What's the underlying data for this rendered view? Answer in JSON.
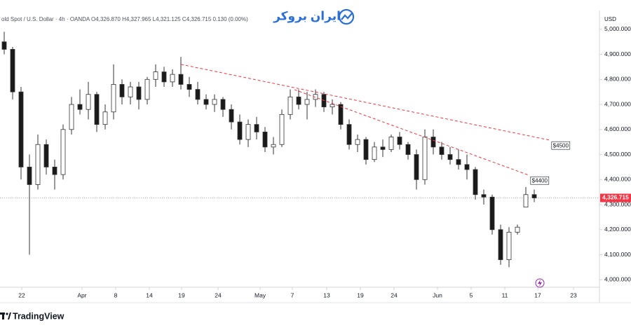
{
  "chart_data": {
    "type": "candlestick",
    "header": "old Spot / U.S. Dollar · 4h · OANDA O4,326.870 H4,327.965 L4,321.125 C4,326.715 0.130 (0.00%)",
    "watermark": "ایران بروکر",
    "brand": "TradingView",
    "axis_unit": "USD",
    "up_color": "#ffffff",
    "down_color": "#1a1a1a",
    "wick_color": "#333333",
    "xlim": [
      0,
      71.25
    ],
    "ylim": [
      3970,
      5075
    ],
    "xticks": [
      {
        "value": 2.58,
        "label": "22"
      },
      {
        "value": 9.75,
        "label": "Apr"
      },
      {
        "value": 13.75,
        "label": "8"
      },
      {
        "value": 17.75,
        "label": "14"
      },
      {
        "value": 21.58,
        "label": "19"
      },
      {
        "value": 25.92,
        "label": "24"
      },
      {
        "value": 30.92,
        "label": "May"
      },
      {
        "value": 34.75,
        "label": "7"
      },
      {
        "value": 38.83,
        "label": "13"
      },
      {
        "value": 42.83,
        "label": "19"
      },
      {
        "value": 46.83,
        "label": "24"
      },
      {
        "value": 52,
        "label": "Jun"
      },
      {
        "value": 56,
        "label": "5"
      },
      {
        "value": 60,
        "label": "11"
      },
      {
        "value": 63.92,
        "label": "17"
      },
      {
        "value": 68.17,
        "label": "23"
      }
    ],
    "yticks": [
      {
        "value": 5000,
        "label": "5,000.000"
      },
      {
        "value": 4900,
        "label": "4,900.000"
      },
      {
        "value": 4800,
        "label": "4,800.000"
      },
      {
        "value": 4700,
        "label": "4,700.000"
      },
      {
        "value": 4600,
        "label": "4,600.000"
      },
      {
        "value": 4500,
        "label": "4,500.000"
      },
      {
        "value": 4400,
        "label": "4,400.000"
      },
      {
        "value": 4300,
        "label": "4,300.000"
      },
      {
        "value": 4200,
        "label": "4,200.000"
      },
      {
        "value": 4100,
        "label": "4,100.000"
      },
      {
        "value": 4000,
        "label": "4,000.000"
      }
    ],
    "current_price": {
      "value": 4326.715,
      "label": "4,326.715",
      "color": "#f23645"
    },
    "trend_lines": [
      {
        "x": [
          21.5,
          65.4
        ],
        "values": [
          4860,
          4557
        ],
        "label": "$4500",
        "color": "#f23645"
      },
      {
        "x": [
          35,
          62.9
        ],
        "values": [
          4759,
          4417
        ],
        "label": "$4400",
        "color": "#f23645"
      }
    ],
    "x": [
      0.5,
      1.5,
      2.5,
      3.5,
      4.5,
      5.5,
      6.5,
      7.5,
      8.5,
      9.5,
      10.5,
      11.5,
      12.5,
      13.5,
      14.5,
      15.5,
      16.5,
      17.5,
      18.5,
      19.5,
      20.5,
      21.5,
      22.5,
      23.5,
      24.5,
      25.5,
      26.5,
      27.5,
      28.5,
      29.5,
      30.5,
      31.5,
      32.5,
      33.5,
      34.5,
      35.5,
      36.5,
      37.5,
      38.5,
      39.5,
      40.5,
      41.5,
      42.5,
      43.5,
      44.5,
      45.5,
      46.5,
      47.5,
      48.5,
      49.5,
      50.5,
      51.5,
      52.5,
      53.5,
      54.5,
      55.5,
      56.5,
      57.5,
      58.5,
      59.5,
      60.5,
      61.5,
      62.5,
      63.5
    ],
    "open": [
      4950,
      4920,
      4750,
      4450,
      4380,
      4540,
      4450,
      4420,
      4600,
      4700,
      4680,
      4740,
      4620,
      4670,
      4780,
      4730,
      4770,
      4720,
      4800,
      4830,
      4790,
      4820,
      4780,
      4760,
      4720,
      4700,
      4720,
      4680,
      4630,
      4560,
      4620,
      4590,
      4530,
      4540,
      4660,
      4730,
      4700,
      4720,
      4740,
      4690,
      4700,
      4620,
      4540,
      4560,
      4480,
      4530,
      4520,
      4570,
      4540,
      4500,
      4400,
      4570,
      4530,
      4500,
      4480,
      4460,
      4440,
      4340,
      4330,
      4200,
      4080,
      4190,
      4290,
      4340
    ],
    "high": [
      4990,
      4930,
      4770,
      4500,
      4580,
      4560,
      4480,
      4620,
      4730,
      4760,
      4790,
      4750,
      4700,
      4860,
      4800,
      4790,
      4790,
      4810,
      4860,
      4850,
      4840,
      4890,
      4810,
      4790,
      4740,
      4740,
      4730,
      4700,
      4660,
      4640,
      4650,
      4610,
      4570,
      4680,
      4760,
      4760,
      4750,
      4760,
      4750,
      4720,
      4710,
      4640,
      4580,
      4570,
      4550,
      4560,
      4580,
      4590,
      4550,
      4520,
      4600,
      4600,
      4550,
      4530,
      4520,
      4500,
      4450,
      4360,
      4340,
      4220,
      4210,
      4220,
      4370,
      4360
    ],
    "low": [
      4900,
      4720,
      4400,
      4100,
      4360,
      4420,
      4360,
      4400,
      4580,
      4660,
      4640,
      4590,
      4600,
      4640,
      4700,
      4700,
      4680,
      4700,
      4770,
      4770,
      4770,
      4760,
      4730,
      4700,
      4680,
      4670,
      4650,
      4600,
      4540,
      4530,
      4560,
      4510,
      4500,
      4530,
      4640,
      4680,
      4640,
      4690,
      4670,
      4660,
      4600,
      4520,
      4510,
      4460,
      4470,
      4490,
      4510,
      4520,
      4480,
      4360,
      4380,
      4500,
      4480,
      4460,
      4440,
      4400,
      4320,
      4300,
      4180,
      4060,
      4050,
      4180,
      4290,
      4310
    ],
    "close": [
      4920,
      4750,
      4450,
      4380,
      4540,
      4450,
      4420,
      4600,
      4700,
      4680,
      4740,
      4620,
      4670,
      4780,
      4730,
      4770,
      4720,
      4800,
      4830,
      4790,
      4820,
      4780,
      4760,
      4720,
      4700,
      4720,
      4680,
      4630,
      4560,
      4620,
      4590,
      4530,
      4540,
      4660,
      4730,
      4700,
      4720,
      4740,
      4690,
      4700,
      4620,
      4540,
      4560,
      4480,
      4530,
      4520,
      4570,
      4540,
      4500,
      4400,
      4570,
      4530,
      4500,
      4480,
      4460,
      4440,
      4340,
      4330,
      4200,
      4080,
      4190,
      4210,
      4340,
      4326.715
    ]
  }
}
